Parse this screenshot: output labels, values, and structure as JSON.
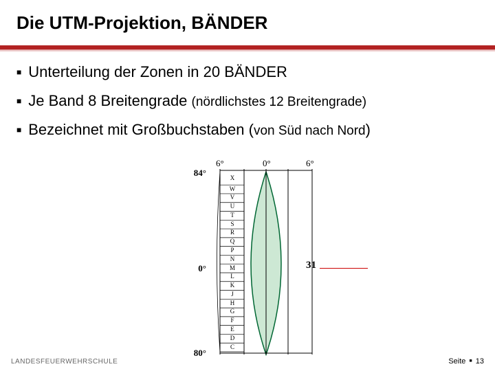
{
  "header": {
    "title": "Die UTM-Projektion, BÄNDER"
  },
  "bullets": {
    "b1": "Unterteilung der Zonen in 20 BÄNDER",
    "b2_main": "Je Band 8 Breitengrade ",
    "b2_small": "(nördlichstes 12 Breitengrade)",
    "b3_main": "Bezeichnet mit Großbuchstaben (",
    "b3_small": "von Süd nach Nord",
    "b3_end": ")"
  },
  "diagram": {
    "top": {
      "left": "6°",
      "mid": "0°",
      "right": "6°"
    },
    "lat": {
      "top": "84°",
      "mid": "0°",
      "bot": "80°"
    },
    "bands": [
      "X",
      "W",
      "V",
      "U",
      "T",
      "S",
      "R",
      "Q",
      "P",
      "N",
      "M",
      "L",
      "K",
      "J",
      "H",
      "G",
      "F",
      "E",
      "D",
      "C"
    ],
    "zone_label": "31",
    "colors": {
      "grid": "#000000",
      "ellipse_stroke": "#006633",
      "ellipse_fill": "#cde8d4",
      "red": "#cc0000"
    }
  },
  "footer": {
    "left": "LANDESFEUERWEHRSCHULE",
    "right_label": "Seite",
    "right_num": "13"
  }
}
